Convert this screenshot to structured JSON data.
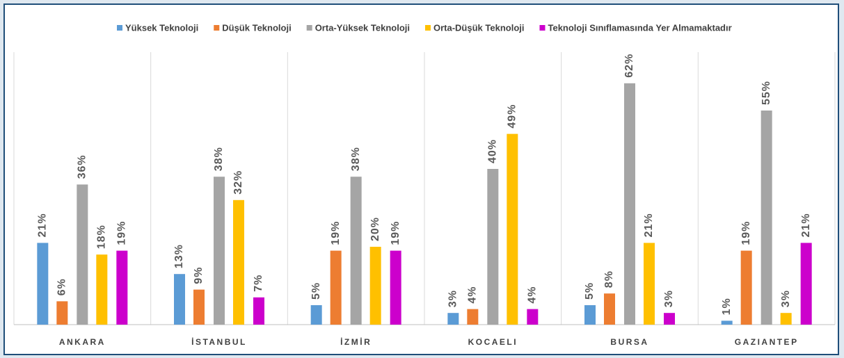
{
  "chart_data": {
    "type": "bar",
    "categories": [
      "ANKARA",
      "İSTANBUL",
      "İZMİR",
      "KOCAELI",
      "BURSA",
      "GAZIANTEP"
    ],
    "series": [
      {
        "name": "Yüksek Teknoloji",
        "color": "#5b9bd5",
        "values": [
          21,
          13,
          5,
          3,
          5,
          1
        ],
        "value_labels": [
          "21%",
          "13%",
          "5%",
          "3%",
          "5%",
          "1%"
        ]
      },
      {
        "name": "Düşük Teknoloji",
        "color": "#ed7d31",
        "values": [
          6,
          9,
          19,
          4,
          8,
          19
        ],
        "value_labels": [
          "6%",
          "9%",
          "19%",
          "4%",
          "8%",
          "19%"
        ]
      },
      {
        "name": "Orta-Yüksek Teknoloji",
        "color": "#a5a5a5",
        "values": [
          36,
          38,
          38,
          40,
          62,
          55
        ],
        "value_labels": [
          "36%",
          "38%",
          "38%",
          "40%",
          "62%",
          "55%"
        ]
      },
      {
        "name": "Orta-Düşük Teknoloji",
        "color": "#ffc000",
        "values": [
          18,
          32,
          20,
          49,
          21,
          3
        ],
        "value_labels": [
          "18%",
          "32%",
          "20%",
          "49%",
          "21%",
          "3%"
        ]
      },
      {
        "name": "Teknoloji Sınıflamasında Yer Almamaktadır",
        "color": "#cc00cc",
        "values": [
          19,
          7,
          19,
          4,
          3,
          21
        ],
        "value_labels": [
          "19%",
          "7%",
          "19%",
          "4%",
          "3%",
          "21%"
        ]
      }
    ],
    "ylim": [
      0,
      70
    ],
    "legend": "top"
  }
}
